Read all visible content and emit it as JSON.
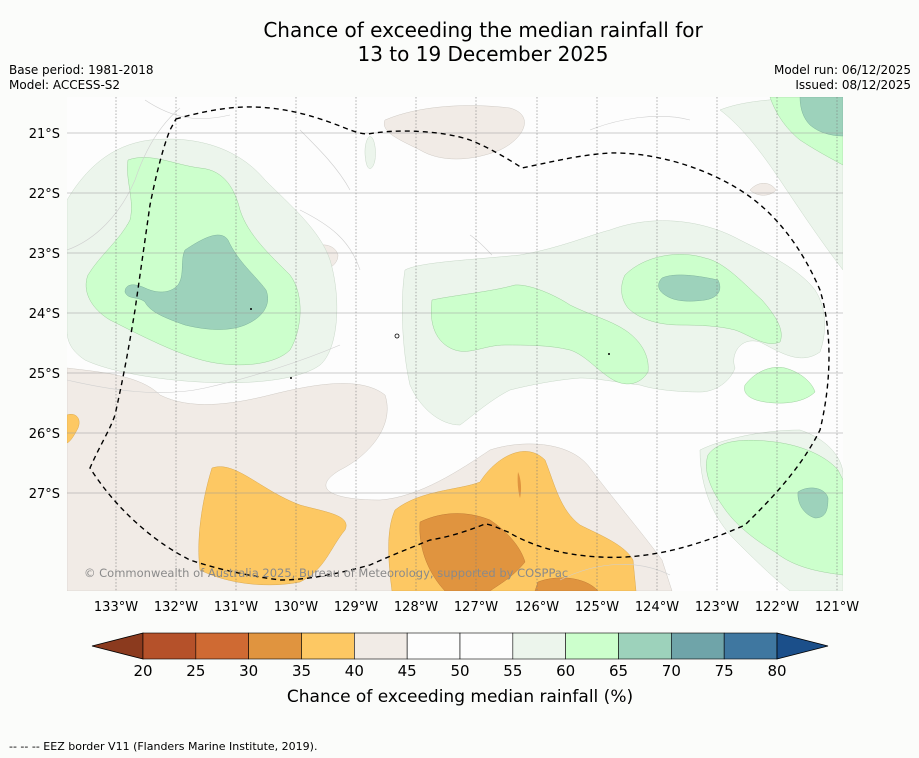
{
  "title": {
    "line1": "Chance of exceeding the median rainfall for",
    "line2": "13 to 19 December 2025"
  },
  "meta": {
    "base_period": "Base period: 1981-2018",
    "model": "Model: ACCESS-S2",
    "model_run": "Model run: 06/12/2025",
    "issued": "Issued: 08/12/2025"
  },
  "map": {
    "lat_labels": [
      "21°S",
      "22°S",
      "23°S",
      "24°S",
      "25°S",
      "26°S",
      "27°S"
    ],
    "lon_labels": [
      "133°W",
      "132°W",
      "131°W",
      "130°W",
      "129°W",
      "128°W",
      "127°W",
      "126°W",
      "125°W",
      "124°W",
      "123°W",
      "122°W",
      "121°W"
    ],
    "copyright": "© Commonwealth of Australia 2025, Bureau of Meteorology, supported by COSPPac",
    "border_style": "dashed"
  },
  "colorbar": {
    "ticks": [
      "20",
      "25",
      "30",
      "35",
      "40",
      "45",
      "50",
      "55",
      "60",
      "65",
      "70",
      "75",
      "80"
    ],
    "colors": [
      "#b5512a",
      "#cf6a33",
      "#e0943f",
      "#fdc863",
      "#f1ebe6",
      "#fdfdfd",
      "#fdfdfd",
      "#ecf5ec",
      "#ccffcc",
      "#9dd2bb",
      "#6fa4a9",
      "#3f77a0"
    ],
    "low_color": "#8b3a1e",
    "high_color": "#1b4f8a",
    "label": "Chance of exceeding median rainfall (%)"
  },
  "footer": {
    "legend_note": "-- -- -- EEZ border V11 (Flanders Marine Institute, 2019)."
  }
}
